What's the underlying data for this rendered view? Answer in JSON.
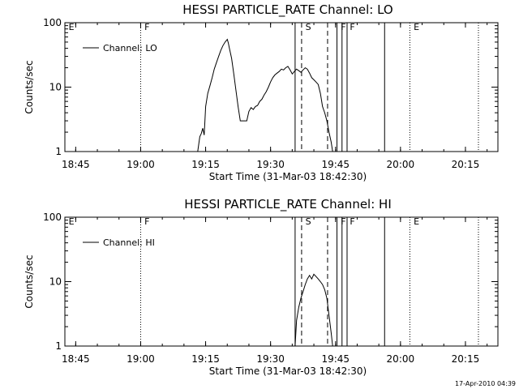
{
  "footer": {
    "timestamp": "17-Apr-2010 04:39"
  },
  "chart_data": [
    {
      "type": "line",
      "title": "HESSI PARTICLE_RATE Channel: LO",
      "xlabel": "Start Time (31-Mar-03 18:42:30)",
      "ylabel": "Counts/sec",
      "x_ticks": [
        "18:45",
        "19:00",
        "19:15",
        "19:30",
        "19:45",
        "20:00",
        "20:15"
      ],
      "y_ticks": [
        "1",
        "10",
        "100"
      ],
      "yscale": "log",
      "ylim": [
        1,
        100
      ],
      "xlim": [
        "18:42:30",
        "20:22:30"
      ],
      "legend": {
        "label": "Channel: LO",
        "placement": "top-left"
      },
      "series": [
        {
          "name": "Channel: LO",
          "x": [
            "19:13:10",
            "19:13:40",
            "19:14:00",
            "19:14:20",
            "19:14:40",
            "19:15:00",
            "19:15:30",
            "19:16:00",
            "19:16:30",
            "19:17:00",
            "19:17:30",
            "19:18:00",
            "19:18:30",
            "19:19:00",
            "19:19:30",
            "19:20:00",
            "19:20:15",
            "19:20:30",
            "19:21:00",
            "19:21:30",
            "19:22:00",
            "19:22:30",
            "19:23:00",
            "19:23:30",
            "19:24:00",
            "19:24:30",
            "19:25:00",
            "19:25:30",
            "19:26:00",
            "19:26:30",
            "19:27:00",
            "19:27:30",
            "19:28:00",
            "19:28:30",
            "19:29:00",
            "19:29:30",
            "19:30:00",
            "19:30:30",
            "19:31:00",
            "19:31:30",
            "19:32:00",
            "19:32:30",
            "19:33:00",
            "19:33:30",
            "19:34:00",
            "19:34:30",
            "19:35:00",
            "19:35:30",
            "19:36:00",
            "19:36:30",
            "19:37:00",
            "19:37:30",
            "19:38:00",
            "19:38:30",
            "19:39:00",
            "19:39:30",
            "19:40:00",
            "19:40:30",
            "19:41:00",
            "19:41:30",
            "19:42:00",
            "19:42:30",
            "19:43:00",
            "19:43:30",
            "19:44:00",
            "19:44:20"
          ],
          "values": [
            1.0,
            1.7,
            1.9,
            2.3,
            1.8,
            5.0,
            8.0,
            10.5,
            14.0,
            19.0,
            24.0,
            30.0,
            37.0,
            44.0,
            50.0,
            55.0,
            48.0,
            40.0,
            28.0,
            16.0,
            9.0,
            5.0,
            3.0,
            3.0,
            3.0,
            3.0,
            4.2,
            4.8,
            4.5,
            5.0,
            5.2,
            6.0,
            6.5,
            7.5,
            8.5,
            10.0,
            12.0,
            14.0,
            15.5,
            16.5,
            17.5,
            19.0,
            18.5,
            20.0,
            21.0,
            18.5,
            16.0,
            17.5,
            19.0,
            18.0,
            17.0,
            18.5,
            20.0,
            19.0,
            16.5,
            14.0,
            13.0,
            12.0,
            11.0,
            8.0,
            5.0,
            4.0,
            3.0,
            2.0,
            1.4,
            1.0
          ]
        }
      ],
      "event_lines": [
        {
          "time": "19:35:40",
          "style": "solid"
        },
        {
          "time": "19:37:10",
          "style": "dashed"
        },
        {
          "time": "19:43:10",
          "style": "dashed"
        },
        {
          "time": "19:45:20",
          "style": "solid"
        },
        {
          "time": "19:46:30",
          "style": "solid"
        },
        {
          "time": "19:47:40",
          "style": "solid"
        },
        {
          "time": "19:56:20",
          "style": "solid"
        },
        {
          "time": "19:00:00",
          "style": "dotted"
        },
        {
          "time": "20:02:10",
          "style": "dotted"
        },
        {
          "time": "20:18:00",
          "style": "dotted"
        }
      ],
      "flags": [
        {
          "label": "E",
          "time": "18:43:00"
        },
        {
          "label": "F",
          "time": "19:00:30"
        },
        {
          "label": "S",
          "time": "19:37:40"
        },
        {
          "label": "F",
          "time": "19:45:50"
        },
        {
          "label": "F",
          "time": "19:47:55"
        },
        {
          "label": "E",
          "time": "20:02:40"
        }
      ]
    },
    {
      "type": "line",
      "title": "HESSI PARTICLE_RATE Channel: HI",
      "xlabel": "Start Time (31-Mar-03 18:42:30)",
      "ylabel": "Counts/sec",
      "x_ticks": [
        "18:45",
        "19:00",
        "19:15",
        "19:30",
        "19:45",
        "20:00",
        "20:15"
      ],
      "y_ticks": [
        "1",
        "10",
        "100"
      ],
      "yscale": "log",
      "ylim": [
        1,
        100
      ],
      "xlim": [
        "18:42:30",
        "20:22:30"
      ],
      "legend": {
        "label": "Channel: HI",
        "placement": "top-left"
      },
      "series": [
        {
          "name": "Channel: HI",
          "x": [
            "19:35:40",
            "19:36:00",
            "19:36:30",
            "19:37:00",
            "19:37:30",
            "19:38:00",
            "19:38:30",
            "19:39:00",
            "19:39:30",
            "19:40:00",
            "19:40:30",
            "19:41:00",
            "19:41:30",
            "19:42:00",
            "19:42:30",
            "19:43:00",
            "19:43:30",
            "19:44:00",
            "19:44:20"
          ],
          "values": [
            1.0,
            2.5,
            4.0,
            5.5,
            7.0,
            9.0,
            11.0,
            12.5,
            11.0,
            13.0,
            12.0,
            11.0,
            10.0,
            9.0,
            7.5,
            5.5,
            3.0,
            1.6,
            1.0
          ]
        }
      ],
      "event_lines": [
        {
          "time": "19:35:40",
          "style": "solid"
        },
        {
          "time": "19:37:10",
          "style": "dashed"
        },
        {
          "time": "19:43:10",
          "style": "dashed"
        },
        {
          "time": "19:45:20",
          "style": "solid"
        },
        {
          "time": "19:46:30",
          "style": "solid"
        },
        {
          "time": "19:47:40",
          "style": "solid"
        },
        {
          "time": "19:56:20",
          "style": "solid"
        },
        {
          "time": "19:00:00",
          "style": "dotted"
        },
        {
          "time": "20:02:10",
          "style": "dotted"
        },
        {
          "time": "20:18:00",
          "style": "dotted"
        }
      ],
      "flags": [
        {
          "label": "E",
          "time": "18:43:00"
        },
        {
          "label": "F",
          "time": "19:00:30"
        },
        {
          "label": "S",
          "time": "19:37:40"
        },
        {
          "label": "F",
          "time": "19:45:50"
        },
        {
          "label": "F",
          "time": "19:47:55"
        },
        {
          "label": "E",
          "time": "20:02:40"
        }
      ]
    }
  ]
}
